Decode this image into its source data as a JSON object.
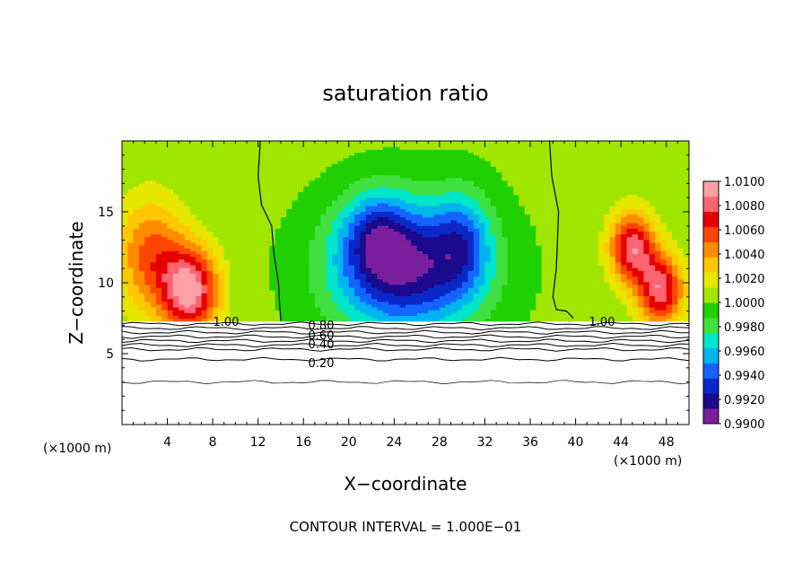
{
  "chart_data": {
    "type": "heatmap",
    "title": "saturation ratio",
    "xlabel": "X−coordinate",
    "ylabel": "Z−coordinate",
    "x_unit_left": "(×1000 m)",
    "x_unit_right": "(×1000 m)",
    "footer": "CONTOUR INTERVAL = 1.000E−01",
    "xlim": [
      0,
      50
    ],
    "ylim": [
      0,
      20
    ],
    "x_ticks": [
      4,
      8,
      12,
      16,
      20,
      24,
      28,
      32,
      36,
      40,
      44,
      48
    ],
    "x_tick_labels": [
      "4",
      "8",
      "12",
      "16",
      "20",
      "24",
      "28",
      "32",
      "36",
      "40",
      "44",
      "48"
    ],
    "y_ticks": [
      5,
      10,
      15
    ],
    "y_tick_labels": [
      "5",
      "10",
      "15"
    ],
    "colorbar": {
      "min": 0.99,
      "max": 1.01,
      "labels": [
        "1.0100",
        "1.0080",
        "1.0060",
        "1.0040",
        "1.0020",
        "1.0000",
        "0.9980",
        "0.9960",
        "0.9940",
        "0.9920",
        "0.9900"
      ],
      "colors": [
        "#7a1f9e",
        "#1a0a8c",
        "#0a28c8",
        "#1464ff",
        "#00b4f0",
        "#00e6c8",
        "#40e040",
        "#20d000",
        "#a0e600",
        "#e6e600",
        "#ffc800",
        "#ff8c00",
        "#ff4600",
        "#e60000",
        "#ff6470",
        "#ffa0a8"
      ]
    },
    "shading_boundary_z": 7.3,
    "contour_labels": [
      "1.00",
      "0.80",
      "0.60",
      "0.40",
      "0.20",
      "1.00"
    ],
    "contour_lines_z": [
      7.1,
      6.8,
      6.5,
      6.2,
      5.9,
      5.6,
      5.3,
      4.6,
      3.0
    ],
    "fields": [
      {
        "kind": "supersaturated",
        "x": 6,
        "z": 9.5,
        "sx": 2.5,
        "sz": 3.0,
        "amplitude": 0.009
      },
      {
        "kind": "supersaturated",
        "x": 2.5,
        "z": 12.0,
        "sx": 3.0,
        "sz": 4.0,
        "amplitude": 0.005
      },
      {
        "kind": "supersaturated",
        "x": 45,
        "z": 12.5,
        "sx": 2.0,
        "sz": 2.5,
        "amplitude": 0.008
      },
      {
        "kind": "supersaturated",
        "x": 47.5,
        "z": 9.5,
        "sx": 2.0,
        "sz": 2.5,
        "amplitude": 0.008
      },
      {
        "kind": "subsaturated",
        "x": 25,
        "z": 11.0,
        "sx": 6.5,
        "sz": 4.5,
        "amplitude": -0.009
      },
      {
        "kind": "subsaturated",
        "x": 22.5,
        "z": 13.5,
        "sx": 3.0,
        "sz": 3.0,
        "amplitude": -0.004
      },
      {
        "kind": "subsaturated",
        "x": 30,
        "z": 13.0,
        "sx": 2.5,
        "sz": 3.5,
        "amplitude": -0.004
      }
    ]
  }
}
